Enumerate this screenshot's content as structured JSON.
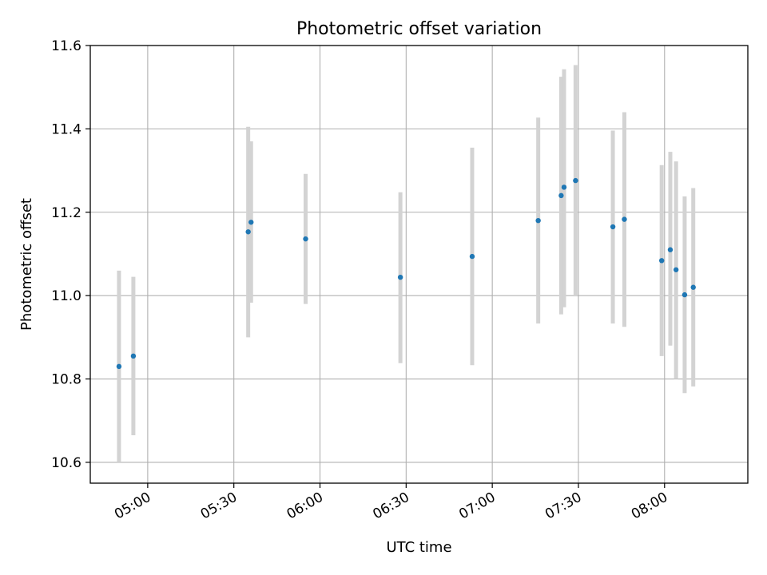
{
  "chart_data": {
    "type": "scatter",
    "title": "Photometric offset variation",
    "xlabel": "UTC time",
    "ylabel": "Photometric offset",
    "xlim": [
      "04:40",
      "08:29"
    ],
    "ylim": [
      10.55,
      11.6
    ],
    "x_ticks": [
      "05:00",
      "05:30",
      "06:00",
      "06:30",
      "07:00",
      "07:30",
      "08:00"
    ],
    "y_ticks": [
      "10.6",
      "10.8",
      "11.0",
      "11.2",
      "11.4",
      "11.6"
    ],
    "grid": true,
    "colors": {
      "marker": "#1f77b4",
      "errorbar": "#d3d3d3",
      "grid": "#b0b0b0"
    },
    "points": [
      {
        "x": "04:50",
        "y": 10.83,
        "y_low": 10.6,
        "y_high": 11.06
      },
      {
        "x": "04:55",
        "y": 10.855,
        "y_low": 10.665,
        "y_high": 11.045
      },
      {
        "x": "05:35",
        "y": 11.153,
        "y_low": 10.9,
        "y_high": 11.405
      },
      {
        "x": "05:36",
        "y": 11.176,
        "y_low": 10.983,
        "y_high": 11.37
      },
      {
        "x": "05:55",
        "y": 11.136,
        "y_low": 10.98,
        "y_high": 11.292
      },
      {
        "x": "06:28",
        "y": 11.044,
        "y_low": 10.838,
        "y_high": 11.248
      },
      {
        "x": "06:53",
        "y": 11.094,
        "y_low": 10.833,
        "y_high": 11.355
      },
      {
        "x": "07:16",
        "y": 11.18,
        "y_low": 10.933,
        "y_high": 11.427
      },
      {
        "x": "07:24",
        "y": 11.24,
        "y_low": 10.955,
        "y_high": 11.525
      },
      {
        "x": "07:25",
        "y": 11.26,
        "y_low": 10.972,
        "y_high": 11.543
      },
      {
        "x": "07:29",
        "y": 11.276,
        "y_low": 10.998,
        "y_high": 11.553
      },
      {
        "x": "07:42",
        "y": 11.165,
        "y_low": 10.933,
        "y_high": 11.396
      },
      {
        "x": "07:46",
        "y": 11.183,
        "y_low": 10.925,
        "y_high": 11.44
      },
      {
        "x": "07:59",
        "y": 11.084,
        "y_low": 10.855,
        "y_high": 11.313
      },
      {
        "x": "08:02",
        "y": 11.11,
        "y_low": 10.88,
        "y_high": 11.345
      },
      {
        "x": "08:04",
        "y": 11.062,
        "y_low": 10.8,
        "y_high": 11.322
      },
      {
        "x": "08:07",
        "y": 11.002,
        "y_low": 10.766,
        "y_high": 11.238
      },
      {
        "x": "08:10",
        "y": 11.02,
        "y_low": 10.782,
        "y_high": 11.258
      }
    ]
  }
}
